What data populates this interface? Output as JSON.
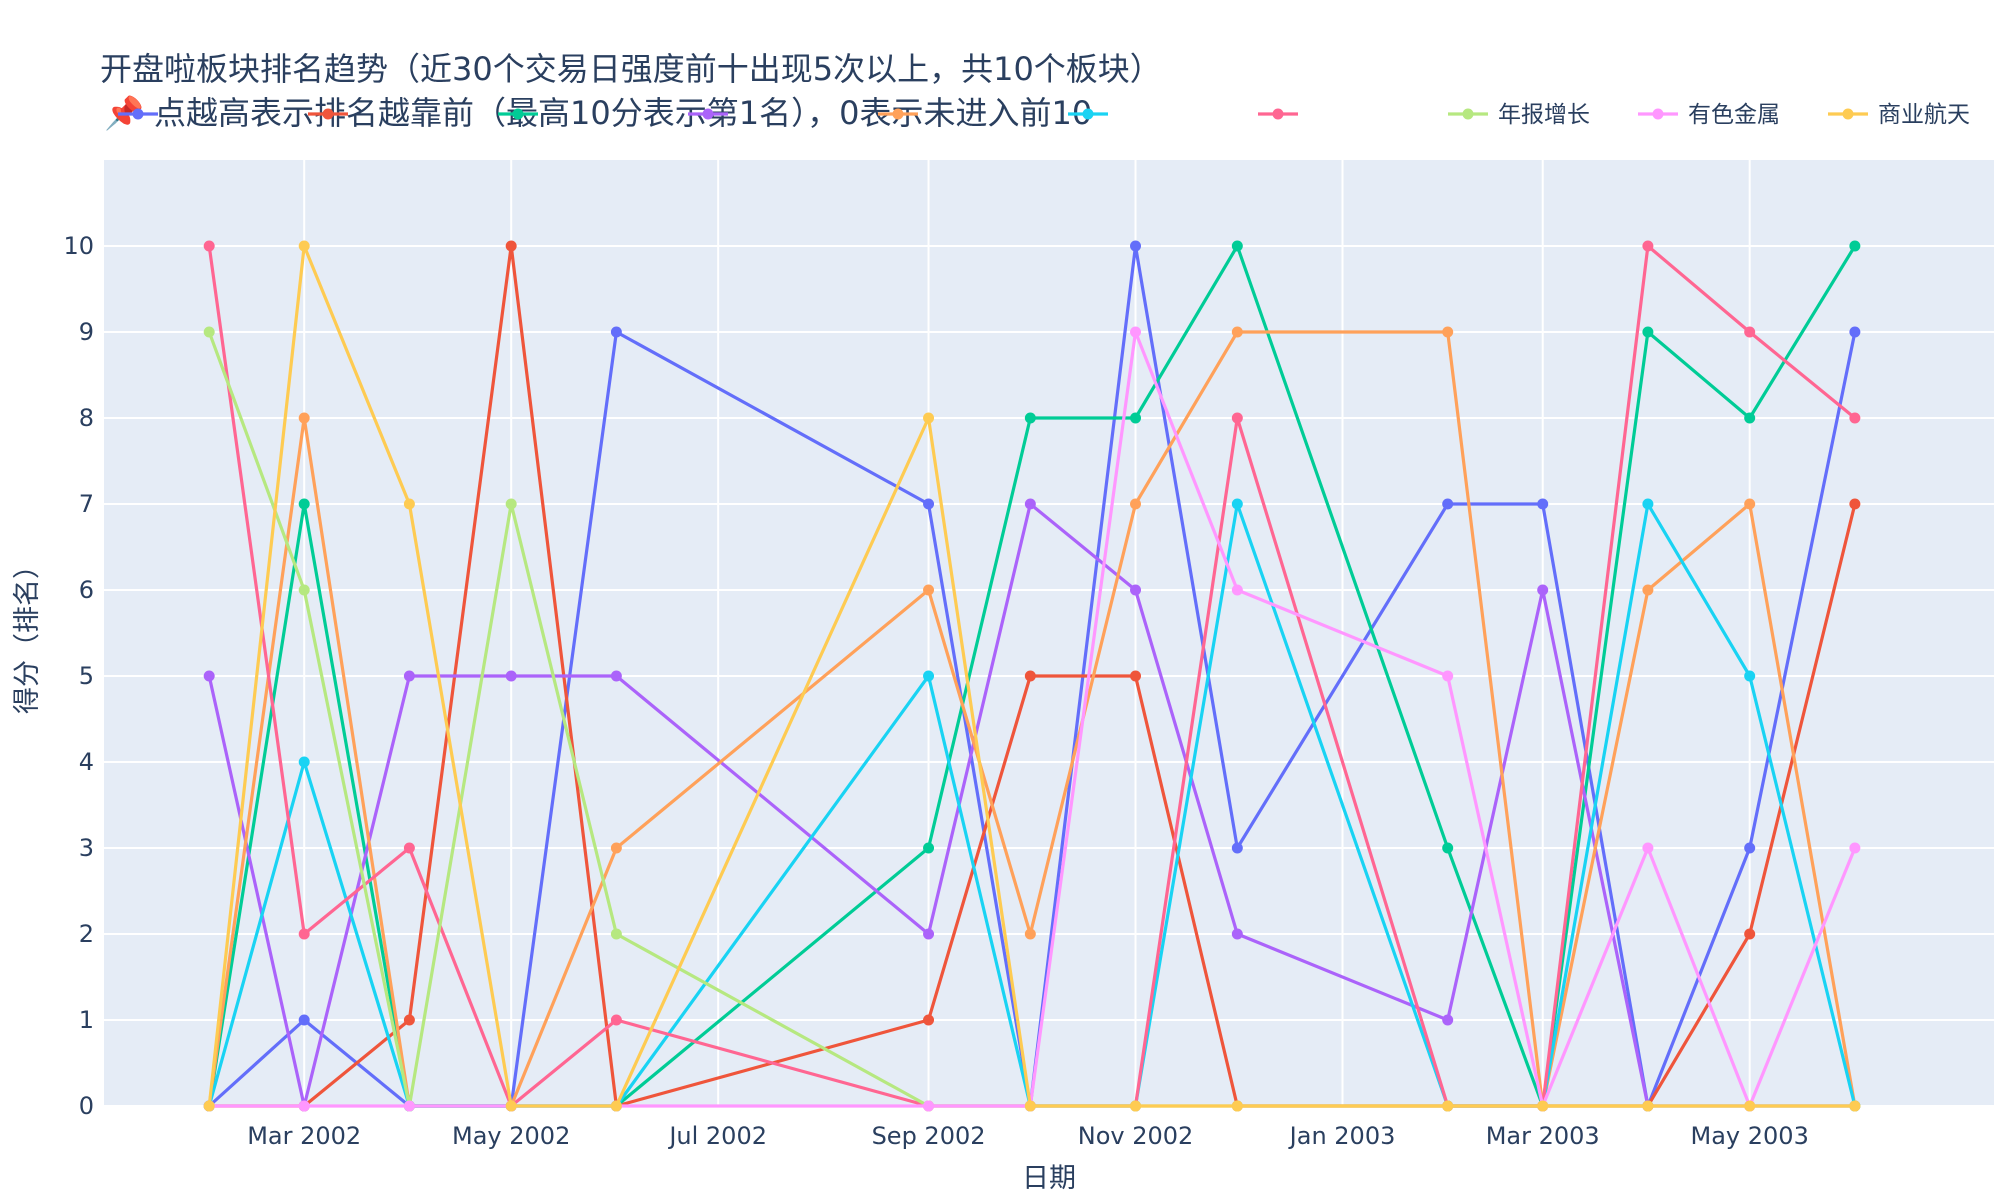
{
  "chart_data": {
    "type": "line",
    "title": "开盘啦板块排名趋势（近30个交易日强度前十出现5次以上，共10个板块）",
    "subtitle": "📌 点越高表示排名越靠前（最高10分表示第1名），0表示未进入前10",
    "xlabel": "日期",
    "ylabel": "得分（排名）",
    "ylim": [
      0,
      11
    ],
    "yticks": [
      0,
      1,
      2,
      3,
      4,
      5,
      6,
      7,
      8,
      9,
      10
    ],
    "xlim": [
      "2002-01-01",
      "2003-07-12"
    ],
    "xticks": [
      {
        "date": "2002-03-01",
        "label": "Mar 2002"
      },
      {
        "date": "2002-05-01",
        "label": "May 2002"
      },
      {
        "date": "2002-07-01",
        "label": "Jul 2002"
      },
      {
        "date": "2002-09-01",
        "label": "Sep 2002"
      },
      {
        "date": "2002-11-01",
        "label": "Nov 2002"
      },
      {
        "date": "2003-01-01",
        "label": "Jan 2003"
      },
      {
        "date": "2003-03-01",
        "label": "Mar 2003"
      },
      {
        "date": "2003-05-01",
        "label": "May 2003"
      }
    ],
    "x": [
      "2002-02-01",
      "2002-03-01",
      "2002-04-01",
      "2002-05-01",
      "2002-06-01",
      "2002-09-01",
      "2002-10-01",
      "2002-11-01",
      "2002-12-01",
      "2003-02-01",
      "2003-03-01",
      "2003-04-01",
      "2003-05-01",
      "2003-06-01"
    ],
    "grid": true,
    "legend_position": "top",
    "series": [
      {
        "name": "",
        "color": "#636efa",
        "values": [
          0,
          1,
          0,
          0,
          9,
          7,
          0,
          10,
          3,
          7,
          7,
          0,
          3,
          9
        ]
      },
      {
        "name": "",
        "color": "#ef553b",
        "values": [
          0,
          0,
          1,
          10,
          0,
          1,
          5,
          5,
          0,
          0,
          0,
          0,
          2,
          7
        ]
      },
      {
        "name": "",
        "color": "#00cc96",
        "values": [
          0,
          7,
          0,
          0,
          0,
          3,
          8,
          8,
          10,
          3,
          0,
          9,
          8,
          10
        ]
      },
      {
        "name": "",
        "color": "#ab63fa",
        "values": [
          5,
          0,
          5,
          5,
          5,
          2,
          7,
          6,
          2,
          1,
          6,
          0,
          0,
          0
        ]
      },
      {
        "name": "",
        "color": "#ffa15a",
        "values": [
          0,
          8,
          0,
          0,
          3,
          6,
          2,
          7,
          9,
          9,
          0,
          6,
          7,
          0
        ]
      },
      {
        "name": "",
        "color": "#19d3f3",
        "values": [
          0,
          4,
          0,
          0,
          0,
          5,
          0,
          0,
          7,
          0,
          0,
          7,
          5,
          0
        ]
      },
      {
        "name": "",
        "color": "#ff6692",
        "values": [
          10,
          2,
          3,
          0,
          1,
          0,
          0,
          0,
          8,
          0,
          0,
          10,
          9,
          8
        ]
      },
      {
        "name": "年报增长",
        "color": "#b6e880",
        "values": [
          9,
          6,
          0,
          7,
          2,
          0,
          0,
          0,
          0,
          0,
          0,
          0,
          0,
          0
        ]
      },
      {
        "name": "有色金属",
        "color": "#ff97ff",
        "values": [
          0,
          0,
          0,
          0,
          0,
          0,
          0,
          9,
          6,
          5,
          0,
          3,
          0,
          3
        ]
      },
      {
        "name": "商业航天",
        "color": "#fecb52",
        "values": [
          0,
          10,
          7,
          0,
          0,
          8,
          0,
          0,
          0,
          0,
          0,
          0,
          0,
          0
        ]
      }
    ]
  }
}
